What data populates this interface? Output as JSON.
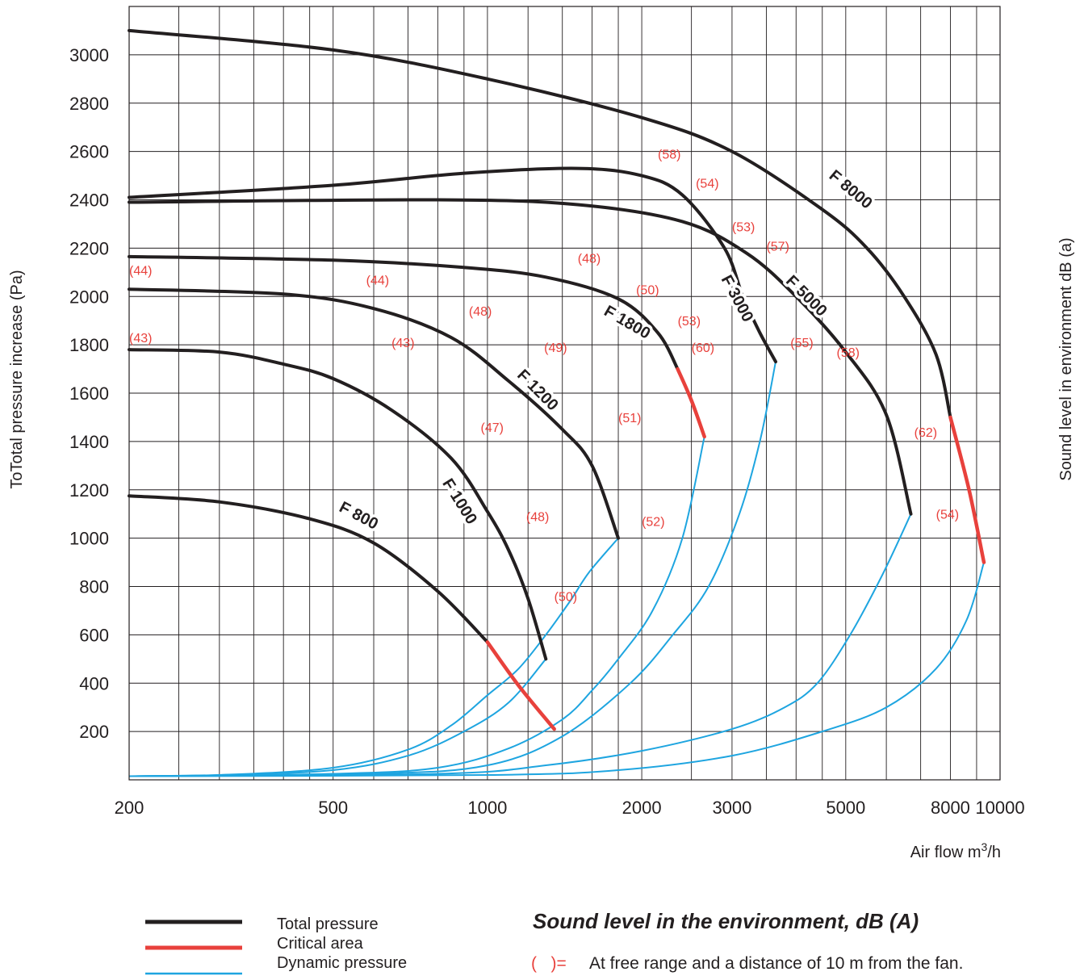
{
  "chart_data": {
    "type": "line",
    "x_scale": "log",
    "x_range": [
      200,
      10000
    ],
    "y_range": [
      0,
      3200
    ],
    "grid": true,
    "x_ticks": [
      200,
      500,
      1000,
      2000,
      3000,
      5000,
      8000,
      10000
    ],
    "x_tick_labels": [
      "200",
      "500",
      "1000",
      "2000",
      "3000",
      "5000",
      "8000",
      "10000"
    ],
    "x_grid": [
      200,
      250,
      300,
      350,
      400,
      450,
      500,
      600,
      700,
      800,
      900,
      1000,
      1200,
      1400,
      1600,
      1800,
      2000,
      2500,
      3000,
      3500,
      4000,
      4500,
      5000,
      6000,
      7000,
      8000,
      9000,
      10000
    ],
    "y_ticks": [
      200,
      400,
      600,
      800,
      1000,
      1200,
      1400,
      1600,
      1800,
      2000,
      2200,
      2400,
      2600,
      2800,
      3000
    ],
    "y_tick_labels": [
      "200",
      "400",
      "600",
      "800",
      "1000",
      "1200",
      "1400",
      "1600",
      "1800",
      "2000",
      "2200",
      "2400",
      "2600",
      "2800",
      "3000"
    ],
    "ylabel": "ToTotal pressure increase (Pa)",
    "xlabel": "Air flow m",
    "xlabel_sup": "3",
    "xlabel_suffix": "/h",
    "y2label": "Sound level in environment dB (a)",
    "colors": {
      "total": "#231f20",
      "critical": "#e8413c",
      "dynamic": "#1ea5e0",
      "sound": "#e8413c"
    },
    "series": [
      {
        "name": "F 800",
        "total": [
          [
            200,
            1175
          ],
          [
            300,
            1150
          ],
          [
            450,
            1080
          ],
          [
            600,
            980
          ],
          [
            800,
            780
          ],
          [
            1000,
            570
          ]
        ],
        "critical": [
          [
            1000,
            570
          ],
          [
            1150,
            390
          ],
          [
            1350,
            210
          ]
        ],
        "dynamic": [
          [
            200,
            15
          ],
          [
            300,
            20
          ],
          [
            500,
            50
          ],
          [
            700,
            125
          ],
          [
            850,
            225
          ],
          [
            1000,
            350
          ],
          [
            1150,
            460
          ],
          [
            1300,
            600
          ],
          [
            1450,
            740
          ],
          [
            1580,
            860
          ],
          [
            1800,
            1000
          ]
        ],
        "sound": []
      },
      {
        "name": "F 1000",
        "total": [
          [
            200,
            1780
          ],
          [
            300,
            1770
          ],
          [
            400,
            1720
          ],
          [
            500,
            1660
          ],
          [
            650,
            1530
          ],
          [
            850,
            1330
          ],
          [
            1000,
            1110
          ],
          [
            1100,
            950
          ],
          [
            1200,
            750
          ],
          [
            1300,
            500
          ]
        ],
        "critical": [],
        "dynamic": [
          [
            200,
            15
          ],
          [
            300,
            20
          ],
          [
            500,
            40
          ],
          [
            700,
            100
          ],
          [
            900,
            200
          ],
          [
            1100,
            320
          ],
          [
            1300,
            500
          ]
        ],
        "sound": [
          [
            "(43)",
            200,
            1810
          ],
          [
            "(43)",
            650,
            1790
          ],
          [
            "(47)",
            970,
            1440
          ],
          [
            "(48)",
            1190,
            1070
          ],
          [
            "(50)",
            1350,
            740
          ]
        ]
      },
      {
        "name": "F 1200",
        "total": [
          [
            200,
            2030
          ],
          [
            400,
            2010
          ],
          [
            600,
            1950
          ],
          [
            850,
            1830
          ],
          [
            1100,
            1650
          ],
          [
            1400,
            1450
          ],
          [
            1600,
            1300
          ],
          [
            1800,
            1000
          ]
        ],
        "critical": [],
        "dynamic": [
          [
            200,
            15
          ],
          [
            500,
            25
          ],
          [
            800,
            50
          ],
          [
            1100,
            130
          ],
          [
            1400,
            250
          ],
          [
            1600,
            370
          ],
          [
            1800,
            500
          ],
          [
            2100,
            700
          ],
          [
            2400,
            1000
          ],
          [
            2650,
            1420
          ]
        ],
        "sound": [
          [
            "(44)",
            200,
            2090
          ],
          [
            "(44)",
            580,
            2050
          ],
          [
            "(48)",
            920,
            1920
          ],
          [
            "(49)",
            1290,
            1770
          ],
          [
            "(51)",
            1800,
            1480
          ],
          [
            "(52)",
            2000,
            1050
          ]
        ]
      },
      {
        "name": "F 1800",
        "total": [
          [
            200,
            2165
          ],
          [
            500,
            2150
          ],
          [
            900,
            2120
          ],
          [
            1300,
            2080
          ],
          [
            1800,
            1990
          ],
          [
            2150,
            1850
          ],
          [
            2350,
            1700
          ]
        ],
        "critical": [
          [
            2350,
            1700
          ],
          [
            2500,
            1570
          ],
          [
            2650,
            1420
          ]
        ],
        "dynamic": [
          [
            200,
            15
          ],
          [
            600,
            25
          ],
          [
            1000,
            60
          ],
          [
            1400,
            180
          ],
          [
            1900,
            400
          ],
          [
            2300,
            600
          ],
          [
            2700,
            800
          ],
          [
            3100,
            1100
          ],
          [
            3400,
            1400
          ],
          [
            3650,
            1730
          ]
        ],
        "sound": [
          [
            "(48)",
            1500,
            2140
          ],
          [
            "(50)",
            1950,
            2010
          ],
          [
            "(53)",
            2350,
            1880
          ],
          [
            "(60)",
            2500,
            1770
          ]
        ]
      },
      {
        "name": "F 3000",
        "total": [
          [
            200,
            2410
          ],
          [
            500,
            2460
          ],
          [
            900,
            2510
          ],
          [
            1500,
            2530
          ],
          [
            2000,
            2500
          ],
          [
            2400,
            2420
          ],
          [
            2900,
            2200
          ],
          [
            3150,
            2000
          ],
          [
            3400,
            1850
          ],
          [
            3650,
            1730
          ]
        ],
        "critical": [],
        "dynamic": [
          [
            200,
            15
          ],
          [
            800,
            25
          ],
          [
            1300,
            60
          ],
          [
            2000,
            120
          ],
          [
            3000,
            210
          ],
          [
            3800,
            300
          ],
          [
            4400,
            400
          ],
          [
            5100,
            600
          ],
          [
            5900,
            850
          ],
          [
            6700,
            1100
          ]
        ],
        "sound": [
          [
            "(58)",
            2150,
            2570
          ],
          [
            "(54)",
            2550,
            2450
          ],
          [
            "(53)",
            3000,
            2270
          ],
          [
            "(55)",
            3900,
            1790
          ]
        ]
      },
      {
        "name": "F 5000",
        "total": [
          [
            200,
            2390
          ],
          [
            800,
            2400
          ],
          [
            1500,
            2380
          ],
          [
            2400,
            2310
          ],
          [
            3200,
            2180
          ],
          [
            4000,
            2000
          ],
          [
            5000,
            1770
          ],
          [
            6000,
            1510
          ],
          [
            6700,
            1100
          ]
        ],
        "critical": [],
        "dynamic": [
          [
            200,
            15
          ],
          [
            1000,
            20
          ],
          [
            1800,
            40
          ],
          [
            3000,
            100
          ],
          [
            4500,
            200
          ],
          [
            6000,
            300
          ],
          [
            7500,
            460
          ],
          [
            8600,
            660
          ],
          [
            9300,
            900
          ]
        ],
        "sound": [
          [
            "(57)",
            3500,
            2190
          ],
          [
            "(58)",
            4800,
            1750
          ],
          [
            "(62)",
            6800,
            1420
          ],
          [
            "(54)",
            7500,
            1080
          ]
        ]
      },
      {
        "name": "F 8000",
        "total": [
          [
            200,
            3100
          ],
          [
            500,
            3020
          ],
          [
            1000,
            2900
          ],
          [
            2000,
            2740
          ],
          [
            3000,
            2600
          ],
          [
            4500,
            2360
          ],
          [
            5500,
            2200
          ],
          [
            6500,
            2000
          ],
          [
            7500,
            1760
          ],
          [
            8000,
            1500
          ]
        ],
        "critical": [
          [
            8000,
            1500
          ],
          [
            8700,
            1200
          ],
          [
            9300,
            900
          ]
        ],
        "dynamic": [],
        "sound": []
      }
    ],
    "model_labels": [
      {
        "text": "F 800",
        "x": 560,
        "y": 1090,
        "rotate": 28
      },
      {
        "text": "F 1000",
        "x": 880,
        "y": 1150,
        "rotate": 58
      },
      {
        "text": "F 1200",
        "x": 1250,
        "y": 1610,
        "rotate": 45
      },
      {
        "text": "F 1800",
        "x": 1870,
        "y": 1890,
        "rotate": 30
      },
      {
        "text": "F 3000",
        "x": 3060,
        "y": 1990,
        "rotate": 62
      },
      {
        "text": "F 5000",
        "x": 4180,
        "y": 2000,
        "rotate": 45
      },
      {
        "text": "F 8000",
        "x": 5100,
        "y": 2440,
        "rotate": 40
      }
    ]
  },
  "legend": {
    "items": [
      {
        "label": "Total pressure",
        "color": "#231f20"
      },
      {
        "label": "Critical area",
        "color": "#e8413c"
      },
      {
        "label": "Dynamic pressure",
        "color": "#1ea5e0"
      }
    ]
  },
  "sound_note": {
    "title": "Sound level in the environment, dB (A)",
    "mark": "(   )=",
    "text": "At free range and a distance of 10 m from the fan."
  }
}
